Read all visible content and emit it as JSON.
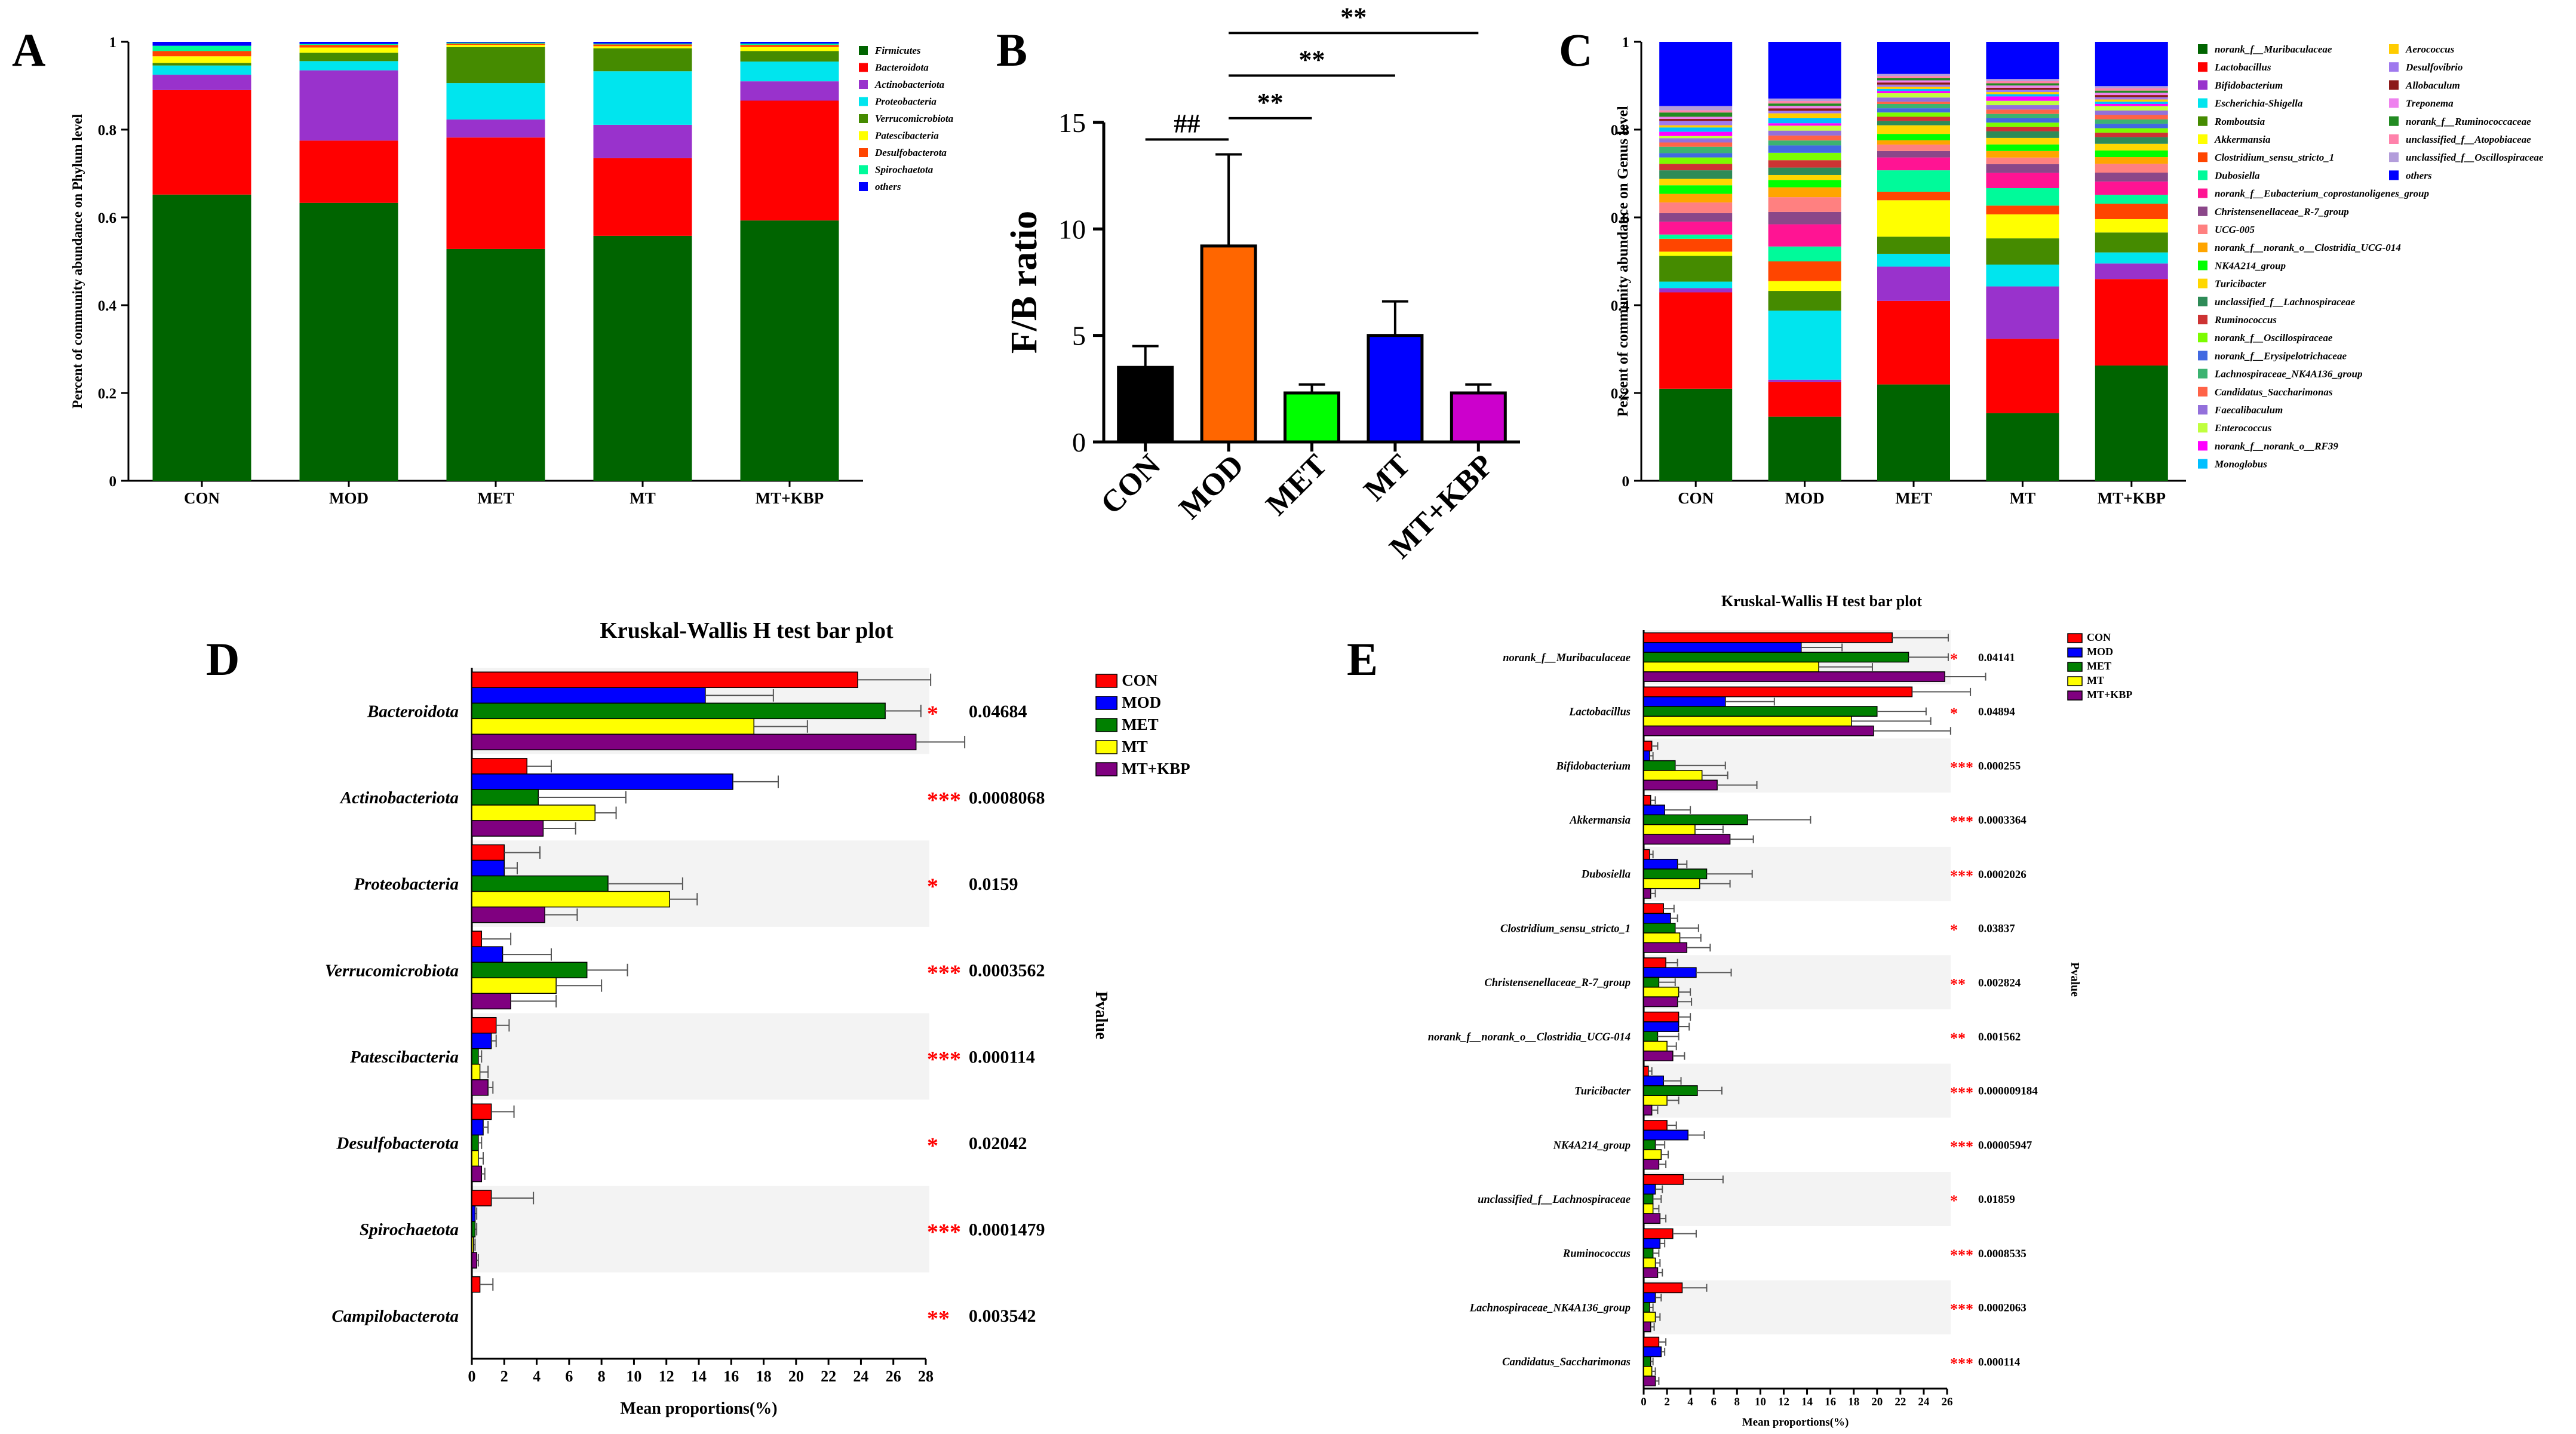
{
  "figure": {
    "panel_labels": [
      "A",
      "B",
      "C",
      "D",
      "E"
    ]
  },
  "colors": {
    "CON": "#ff0000",
    "MOD": "#0000ff",
    "MET": "#008000",
    "MT": "#ffff00",
    "MT+KBP": "#800080",
    "sig": "#ff0000"
  },
  "chart_data": [
    {
      "id": "A",
      "type": "bar",
      "stacked": true,
      "title": "",
      "xlabel": "",
      "ylabel": "Percent of community abundance on Phylum level",
      "ylim": [
        0,
        1
      ],
      "yticks": [
        "0",
        "0.2",
        "0.4",
        "0.6",
        "0.8",
        "1"
      ],
      "categories": [
        "CON",
        "MOD",
        "MET",
        "MT",
        "MT+KBP"
      ],
      "series": [
        {
          "name": "Firmicutes",
          "color": "#006400",
          "values": [
            0.652,
            0.633,
            0.528,
            0.558,
            0.593
          ]
        },
        {
          "name": "Bacteroidota",
          "color": "#ff0000",
          "values": [
            0.238,
            0.142,
            0.254,
            0.177,
            0.273
          ]
        },
        {
          "name": "Actinobacteriota",
          "color": "#9932cc",
          "values": [
            0.035,
            0.16,
            0.041,
            0.076,
            0.044
          ]
        },
        {
          "name": "Proteobacteria",
          "color": "#00e5ee",
          "values": [
            0.021,
            0.021,
            0.083,
            0.122,
            0.045
          ]
        },
        {
          "name": "Verrucomicrobiota",
          "color": "#458b00",
          "values": [
            0.006,
            0.019,
            0.082,
            0.052,
            0.024
          ]
        },
        {
          "name": "Patescibacteria",
          "color": "#ffff00",
          "values": [
            0.015,
            0.012,
            0.005,
            0.005,
            0.009
          ]
        },
        {
          "name": "Desulfobacterota",
          "color": "#ff4500",
          "values": [
            0.012,
            0.006,
            0.003,
            0.004,
            0.005
          ]
        },
        {
          "name": "Spirochaetota",
          "color": "#00fa9a",
          "values": [
            0.012,
            0.002,
            0.002,
            0.002,
            0.003
          ]
        },
        {
          "name": "others",
          "color": "#0000ff",
          "values": [
            0.009,
            0.005,
            0.002,
            0.004,
            0.004
          ]
        }
      ]
    },
    {
      "id": "B",
      "type": "bar",
      "title": "",
      "xlabel": "",
      "ylabel": "F/B ratio",
      "ylim": [
        0,
        15
      ],
      "yticks": [
        "0",
        "5",
        "10",
        "15"
      ],
      "categories": [
        "CON",
        "MOD",
        "MET",
        "MT",
        "MT+KBP"
      ],
      "values": [
        3.5,
        9.2,
        2.3,
        5.0,
        2.3
      ],
      "errors": [
        1.0,
        4.3,
        0.4,
        1.6,
        0.4
      ],
      "bar_colors": [
        "#000000",
        "#ff6600",
        "#00ff00",
        "#0000ff",
        "#cc00cc"
      ],
      "annotations": [
        {
          "from": "CON",
          "to": "MOD",
          "label": "##",
          "y": 14.2
        },
        {
          "from": "MOD",
          "to": "MET",
          "label": "**",
          "y": 15.2
        },
        {
          "from": "MOD",
          "to": "MT",
          "label": "**",
          "y": 17.2
        },
        {
          "from": "MOD",
          "to": "MT+KBP",
          "label": "**",
          "y": 19.2
        }
      ]
    },
    {
      "id": "C",
      "type": "bar",
      "stacked": true,
      "title": "",
      "xlabel": "",
      "ylabel": "Percent of community abundance on Genus level",
      "ylim": [
        0,
        1
      ],
      "yticks": [
        "0",
        "0.2",
        "0.4",
        "0.6",
        "0.8",
        "1"
      ],
      "categories": [
        "CON",
        "MOD",
        "MET",
        "MT",
        "MT+KBP"
      ],
      "series": [
        {
          "name": "norank_f__Muribaculaceae",
          "color": "#006400",
          "values": [
            0.215,
            0.13,
            0.225,
            0.155,
            0.26
          ]
        },
        {
          "name": "Lactobacillus",
          "color": "#ff0000",
          "values": [
            0.225,
            0.07,
            0.195,
            0.17,
            0.195
          ]
        },
        {
          "name": "Bifidobacterium",
          "color": "#9932cc",
          "values": [
            0.01,
            0.005,
            0.08,
            0.12,
            0.035
          ]
        },
        {
          "name": "Escherichia-Shigella",
          "color": "#00e5ee",
          "values": [
            0.015,
            0.14,
            0.03,
            0.05,
            0.025
          ]
        },
        {
          "name": "Romboutsia",
          "color": "#458b00",
          "values": [
            0.06,
            0.04,
            0.04,
            0.06,
            0.045
          ]
        },
        {
          "name": "Akkermansia",
          "color": "#ffff00",
          "values": [
            0.01,
            0.02,
            0.085,
            0.055,
            0.03
          ]
        },
        {
          "name": "Clostridium_sensu_stricto_1",
          "color": "#ff4500",
          "values": [
            0.03,
            0.04,
            0.02,
            0.02,
            0.035
          ]
        },
        {
          "name": "Dubosiella",
          "color": "#00fa9a",
          "values": [
            0.01,
            0.03,
            0.05,
            0.04,
            0.02
          ]
        },
        {
          "name": "norank_f__Eubacterium_coprostanoligenes_group",
          "color": "#ff1493",
          "values": [
            0.03,
            0.045,
            0.03,
            0.035,
            0.03
          ]
        },
        {
          "name": "Christensenellaceae_R-7_group",
          "color": "#8b4789",
          "values": [
            0.02,
            0.025,
            0.015,
            0.02,
            0.02
          ]
        },
        {
          "name": "UCG-005",
          "color": "#ff8080",
          "values": [
            0.025,
            0.03,
            0.015,
            0.015,
            0.02
          ]
        },
        {
          "name": "norank_f__norank_o__Clostridia_UCG-014",
          "color": "#ffa500",
          "values": [
            0.02,
            0.02,
            0.01,
            0.015,
            0.015
          ]
        },
        {
          "name": "NK4A214_group",
          "color": "#00ff00",
          "values": [
            0.02,
            0.015,
            0.015,
            0.015,
            0.015
          ]
        },
        {
          "name": "Turicibacter",
          "color": "#ffd700",
          "values": [
            0.015,
            0.01,
            0.02,
            0.015,
            0.015
          ]
        },
        {
          "name": "unclassified_f__Lachnospiraceae",
          "color": "#2e8b57",
          "values": [
            0.02,
            0.015,
            0.01,
            0.015,
            0.015
          ]
        },
        {
          "name": "Ruminococcus",
          "color": "#cd3333",
          "values": [
            0.015,
            0.015,
            0.01,
            0.01,
            0.01
          ]
        },
        {
          "name": "norank_f__Oscillospiraceae",
          "color": "#7cfc00",
          "values": [
            0.015,
            0.015,
            0.01,
            0.01,
            0.01
          ]
        },
        {
          "name": "norank_f__Erysipelotrichaceae",
          "color": "#4169e1",
          "values": [
            0.01,
            0.015,
            0.01,
            0.01,
            0.01
          ]
        },
        {
          "name": "Lachnospiraceae_NK4A136_group",
          "color": "#3cb371",
          "values": [
            0.015,
            0.01,
            0.01,
            0.01,
            0.01
          ]
        },
        {
          "name": "Candidatus_Saccharimonas",
          "color": "#ff6347",
          "values": [
            0.01,
            0.01,
            0.005,
            0.01,
            0.01
          ]
        },
        {
          "name": "Faecalibaculum",
          "color": "#9370db",
          "values": [
            0.01,
            0.01,
            0.01,
            0.01,
            0.01
          ]
        },
        {
          "name": "Enterococcus",
          "color": "#c0ff3e",
          "values": [
            0.005,
            0.01,
            0.01,
            0.01,
            0.01
          ]
        },
        {
          "name": "norank_f__norank_o__RF39",
          "color": "#ff00ff",
          "values": [
            0.01,
            0.005,
            0.005,
            0.01,
            0.005
          ]
        },
        {
          "name": "Monoglobus",
          "color": "#00bfff",
          "values": [
            0.01,
            0.01,
            0.005,
            0.005,
            0.005
          ]
        },
        {
          "name": "Aerococcus",
          "color": "#ffcc00",
          "values": [
            0.005,
            0.01,
            0.005,
            0.005,
            0.005
          ]
        },
        {
          "name": "Desulfovibrio",
          "color": "#9f79ee",
          "values": [
            0.01,
            0.005,
            0.005,
            0.005,
            0.005
          ]
        },
        {
          "name": "Allobaculum",
          "color": "#8b1a1a",
          "values": [
            0.005,
            0.005,
            0.005,
            0.005,
            0.005
          ]
        },
        {
          "name": "Treponema",
          "color": "#ee82ee",
          "values": [
            0.005,
            0.005,
            0.005,
            0.005,
            0.005
          ]
        },
        {
          "name": "norank_f__Ruminococcaceae",
          "color": "#228b22",
          "values": [
            0.01,
            0.005,
            0.005,
            0.005,
            0.005
          ]
        },
        {
          "name": "unclassified_f__Atopobiaceae",
          "color": "#ff82ab",
          "values": [
            0.005,
            0.005,
            0.005,
            0.005,
            0.005
          ]
        },
        {
          "name": "unclassified_f__Oscillospiraceae",
          "color": "#b39ddb",
          "values": [
            0.01,
            0.005,
            0.005,
            0.005,
            0.005
          ]
        },
        {
          "name": "others",
          "color": "#0000ff",
          "values": [
            0.15,
            0.115,
            0.075,
            0.085,
            0.1
          ]
        }
      ]
    },
    {
      "id": "D",
      "type": "bar",
      "orientation": "horizontal",
      "title": "Kruskal-Wallis H test bar plot",
      "xlabel": "Mean proportions(%)",
      "ylabel": "",
      "pvalue_axis_label": "Pvalue",
      "xlim": [
        0,
        28
      ],
      "xticks": [
        "0",
        "2",
        "4",
        "6",
        "8",
        "10",
        "12",
        "14",
        "16",
        "18",
        "20",
        "22",
        "24",
        "26",
        "28"
      ],
      "categories": [
        "Bacteroidota",
        "Actinobacteriota",
        "Proteobacteria",
        "Verrucomicrobiota",
        "Patescibacteria",
        "Desulfobacterota",
        "Spirochaetota",
        "Campilobacterota"
      ],
      "series": [
        {
          "name": "CON",
          "values": [
            23.8,
            3.4,
            2.0,
            0.6,
            1.5,
            1.2,
            1.2,
            0.5
          ],
          "errors": [
            4.5,
            1.5,
            2.2,
            1.8,
            0.8,
            1.4,
            2.6,
            0.8
          ]
        },
        {
          "name": "MOD",
          "values": [
            14.4,
            16.1,
            2.0,
            1.9,
            1.2,
            0.7,
            0.2,
            0.0
          ],
          "errors": [
            4.2,
            2.8,
            0.8,
            3.0,
            0.3,
            0.3,
            0.1,
            0.0
          ]
        },
        {
          "name": "MET",
          "values": [
            25.5,
            4.1,
            8.4,
            7.1,
            0.4,
            0.4,
            0.2,
            0.0
          ],
          "errors": [
            2.2,
            5.4,
            4.6,
            2.5,
            0.2,
            0.2,
            0.1,
            0.0
          ]
        },
        {
          "name": "MT",
          "values": [
            17.4,
            7.6,
            12.2,
            5.2,
            0.5,
            0.4,
            0.1,
            0.0
          ],
          "errors": [
            3.3,
            1.3,
            1.7,
            2.8,
            0.5,
            0.3,
            0.1,
            0.0
          ]
        },
        {
          "name": "MT+KBP",
          "values": [
            27.4,
            4.4,
            4.5,
            2.4,
            1.0,
            0.6,
            0.3,
            0.0
          ],
          "errors": [
            3.0,
            2.0,
            2.0,
            2.8,
            0.3,
            0.2,
            0.1,
            0.0
          ]
        }
      ],
      "significance": [
        "*",
        "***",
        "*",
        "***",
        "***",
        "*",
        "***",
        "**"
      ],
      "pvalues": [
        "0.04684",
        "0.0008068",
        "0.0159",
        "0.0003562",
        "0.000114",
        "0.02042",
        "0.0001479",
        "0.003542"
      ]
    },
    {
      "id": "E",
      "type": "bar",
      "orientation": "horizontal",
      "title": "Kruskal-Wallis H test bar plot",
      "xlabel": "Mean proportions(%)",
      "ylabel": "",
      "pvalue_axis_label": "Pvalue",
      "xlim": [
        0,
        26
      ],
      "xticks": [
        "0",
        "2",
        "4",
        "6",
        "8",
        "10",
        "12",
        "14",
        "16",
        "18",
        "20",
        "22",
        "24",
        "26"
      ],
      "categories": [
        "norank_f__Muribaculaceae",
        "Lactobacillus",
        "Bifidobacterium",
        "Akkermansia",
        "Dubosiella",
        "Clostridium_sensu_stricto_1",
        "Christensenellaceae_R-7_group",
        "norank_f__norank_o__Clostridia_UCG-014",
        "Turicibacter",
        "NK4A214_group",
        "unclassified_f__Lachnospiraceae",
        "Ruminococcus",
        "Lachnospiraceae_NK4A136_group",
        "Candidatus_Saccharimonas"
      ],
      "series": [
        {
          "name": "CON",
          "values": [
            21.3,
            23.0,
            0.7,
            0.6,
            0.5,
            1.7,
            1.9,
            3.0,
            0.4,
            2.0,
            3.4,
            2.5,
            3.3,
            1.3
          ],
          "errors": [
            4.8,
            5.0,
            0.5,
            0.4,
            0.3,
            0.9,
            1.0,
            1.0,
            0.3,
            0.8,
            3.4,
            2.0,
            2.1,
            0.6
          ]
        },
        {
          "name": "MOD",
          "values": [
            13.5,
            7.0,
            0.5,
            1.8,
            2.9,
            2.3,
            4.5,
            3.0,
            1.7,
            3.8,
            1.0,
            1.4,
            1.0,
            1.5
          ],
          "errors": [
            3.5,
            4.2,
            0.3,
            2.2,
            0.8,
            0.6,
            3.0,
            0.9,
            1.5,
            1.4,
            0.6,
            0.4,
            0.5,
            0.3
          ]
        },
        {
          "name": "MET",
          "values": [
            22.7,
            20.0,
            2.7,
            8.9,
            5.4,
            2.7,
            1.3,
            1.2,
            4.6,
            1.0,
            0.8,
            0.8,
            0.5,
            0.6
          ],
          "errors": [
            3.4,
            4.2,
            4.3,
            5.4,
            3.9,
            2.0,
            1.4,
            1.8,
            2.1,
            0.8,
            0.7,
            0.5,
            0.3,
            0.2
          ]
        },
        {
          "name": "MT",
          "values": [
            15.0,
            17.8,
            5.0,
            4.4,
            4.8,
            3.1,
            3.0,
            2.0,
            2.0,
            1.5,
            0.8,
            1.0,
            1.0,
            0.7
          ],
          "errors": [
            4.6,
            6.8,
            2.2,
            2.4,
            2.6,
            1.8,
            1.0,
            0.8,
            1.0,
            0.6,
            0.5,
            0.4,
            0.4,
            0.3
          ]
        },
        {
          "name": "MT+KBP",
          "values": [
            25.8,
            19.7,
            6.3,
            7.4,
            0.6,
            3.7,
            2.9,
            2.5,
            0.7,
            1.3,
            1.4,
            1.2,
            0.6,
            1.0
          ],
          "errors": [
            3.5,
            6.6,
            3.4,
            2.0,
            0.4,
            2.0,
            1.2,
            1.0,
            0.5,
            0.6,
            0.5,
            0.4,
            0.3,
            0.3
          ]
        }
      ],
      "significance": [
        "*",
        "*",
        "***",
        "***",
        "***",
        "*",
        "**",
        "**",
        "***",
        "***",
        "*",
        "***",
        "***",
        "***"
      ],
      "pvalues": [
        "0.04141",
        "0.04894",
        "0.000255",
        "0.0003364",
        "0.0002026",
        "0.03837",
        "0.002824",
        "0.001562",
        "0.000009184",
        "0.00005947",
        "0.01859",
        "0.0008535",
        "0.0002063",
        "0.000114"
      ]
    }
  ]
}
